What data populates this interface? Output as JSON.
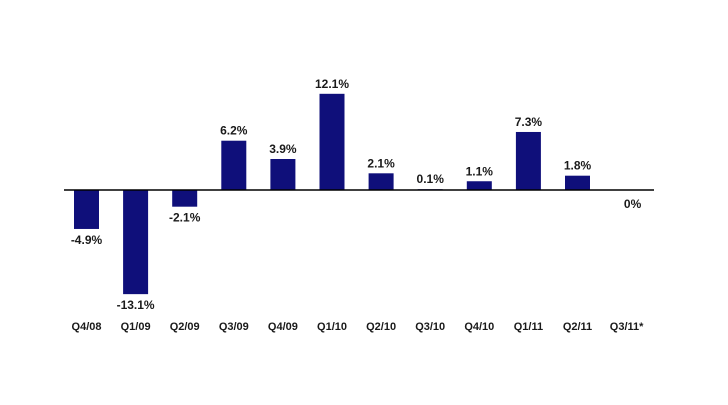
{
  "chart_data": {
    "type": "bar",
    "title": "",
    "xlabel": "",
    "ylabel": "",
    "categories": [
      "Q4/08",
      "Q1/09",
      "Q2/09",
      "Q3/09",
      "Q4/09",
      "Q1/10",
      "Q2/10",
      "Q3/10",
      "Q4/10",
      "Q1/11",
      "Q2/11",
      "Q3/11*"
    ],
    "values": [
      -4.9,
      -13.1,
      -2.1,
      6.2,
      3.9,
      12.1,
      2.1,
      0.1,
      1.1,
      7.3,
      1.8,
      0
    ],
    "data_labels": [
      "-4.9%",
      "-13.1%",
      "-2.1%",
      "6.2%",
      "3.9%",
      "12.1%",
      "2.1%",
      "0.1%",
      "1.1%",
      "7.3%",
      "1.8%",
      "0%"
    ],
    "ylim": [
      -13.1,
      12.1
    ],
    "grid": false,
    "legend": "none",
    "bar_color": "#0f0f7a",
    "axis_color": "#000000"
  }
}
